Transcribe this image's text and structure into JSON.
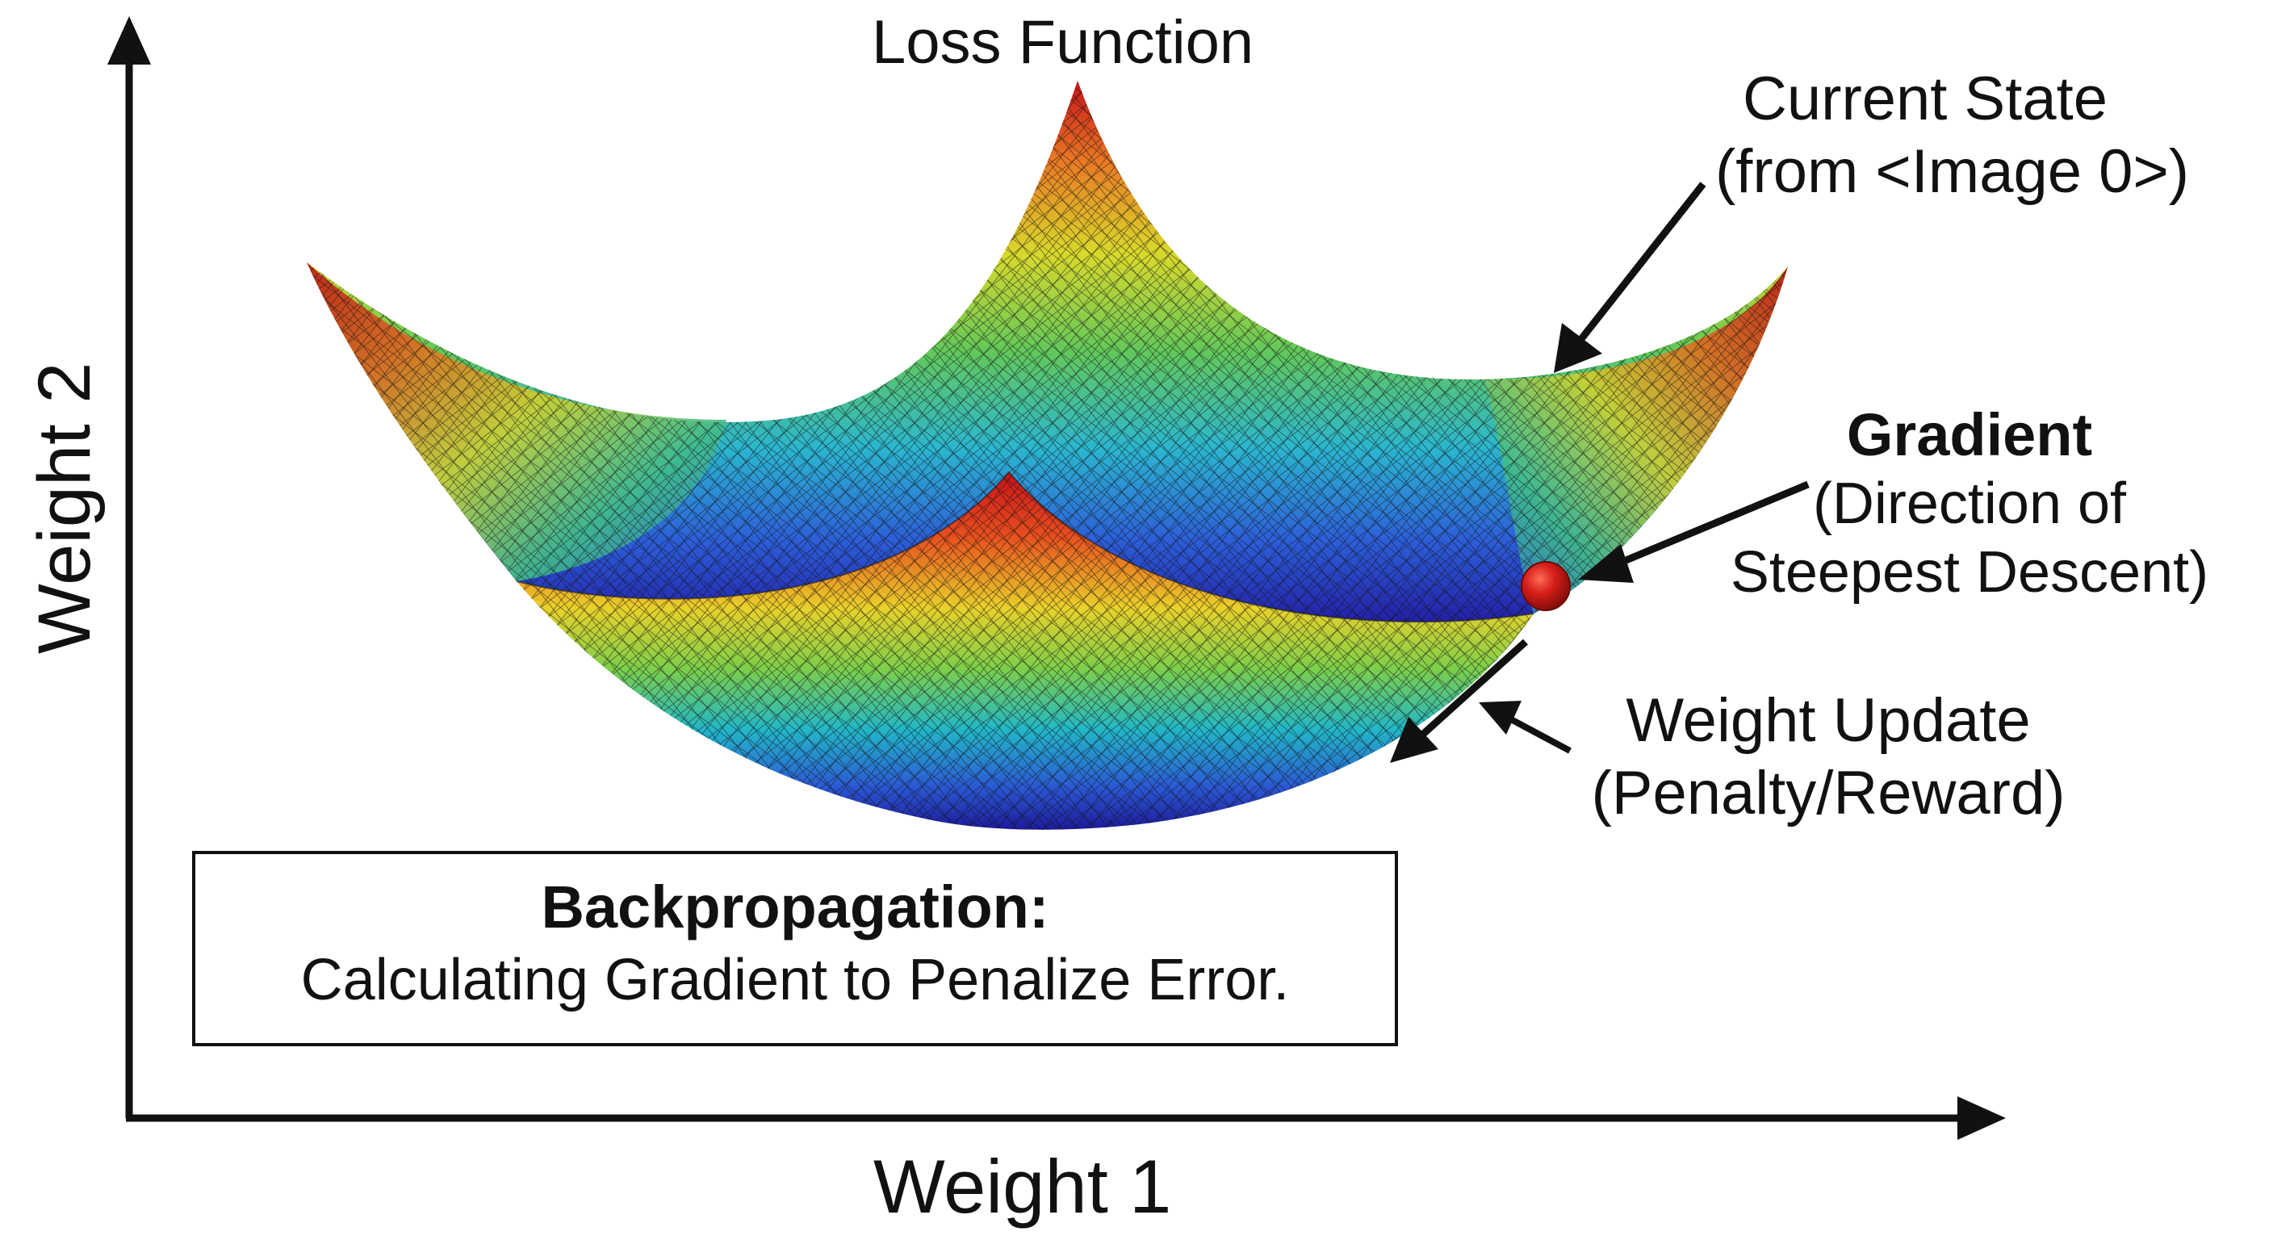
{
  "title": "Loss Function",
  "axes": {
    "x_label": "Weight 1",
    "y_label": "Weight 2"
  },
  "annotations": {
    "current_state": {
      "line1": "Current State",
      "line2": "(from <Image 0>)"
    },
    "gradient": {
      "title": "Gradient",
      "line1": "(Direction of",
      "line2": "Steepest Descent)"
    },
    "weight_update": {
      "line1": "Weight Update",
      "line2": "(Penalty/Reward)"
    }
  },
  "info_box": {
    "title": "Backpropagation:",
    "text": "Calculating Gradient to Penalize Error."
  },
  "colors": {
    "ink": "#111111",
    "ball": "#d41e18",
    "background": "#ffffff"
  }
}
